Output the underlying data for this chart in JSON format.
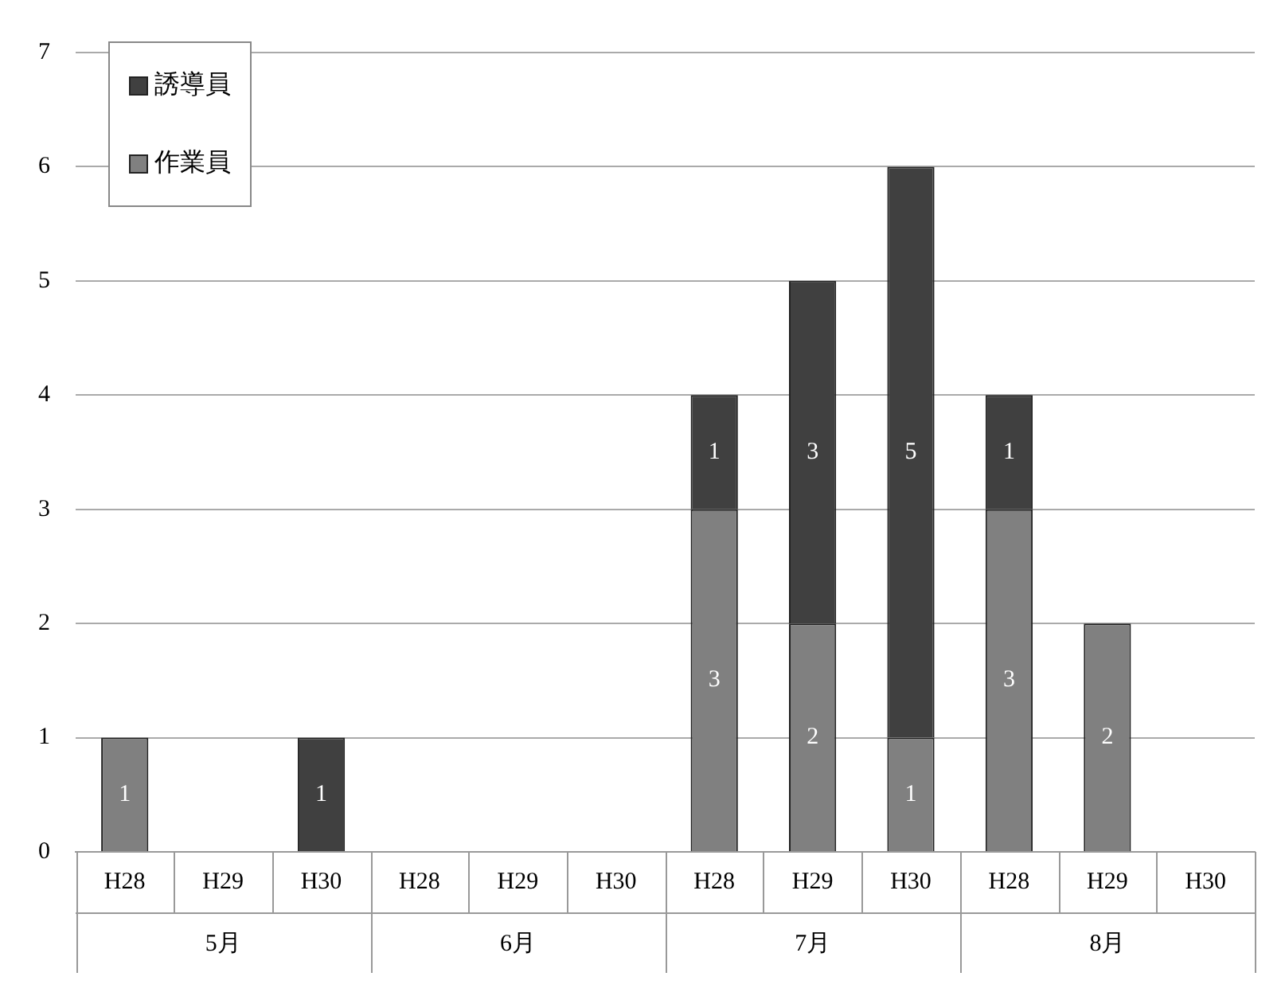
{
  "chart_data": {
    "type": "bar",
    "stacked": true,
    "categories": [
      "H28",
      "H29",
      "H30",
      "H28",
      "H29",
      "H30",
      "H28",
      "H29",
      "H30",
      "H28",
      "H29",
      "H30"
    ],
    "series": [
      {
        "name": "作業員",
        "color": "#808080",
        "values": [
          1,
          0,
          0,
          0,
          0,
          0,
          3,
          2,
          1,
          3,
          2,
          0
        ],
        "value_labels": [
          "1",
          null,
          null,
          null,
          null,
          null,
          "3",
          "2",
          "1",
          "3",
          "2",
          null
        ]
      },
      {
        "name": "誘導員",
        "color": "#404040",
        "values": [
          0,
          0,
          1,
          0,
          0,
          0,
          1,
          3,
          5,
          1,
          0,
          0
        ],
        "value_labels": [
          null,
          null,
          "1",
          null,
          null,
          null,
          "1",
          "3",
          "5",
          "1",
          null,
          null
        ]
      }
    ],
    "annotations": [
      "5月",
      "6月",
      "7月",
      "8月"
    ],
    "ylim": [
      0,
      7
    ],
    "yticks": [
      0,
      1,
      2,
      3,
      4,
      5,
      6,
      7
    ],
    "grid": "y",
    "legend": "top left"
  }
}
